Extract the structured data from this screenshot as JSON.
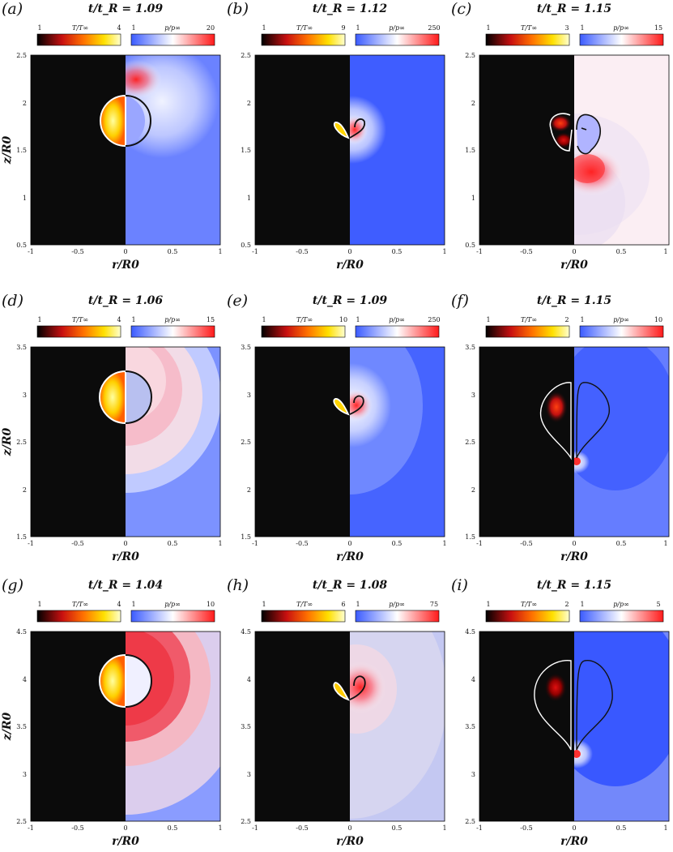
{
  "figure": {
    "panels": [
      {
        "label": "(a)",
        "title": "t/t_R = 1.09",
        "cbT": {
          "label": "T/T∞",
          "min": "1",
          "max": "4"
        },
        "cbP": {
          "label": "p/p∞",
          "min": "1",
          "max": "20"
        },
        "zlim": [
          0.5,
          2.5
        ],
        "zticks": [
          "0.5",
          "1",
          "1.5",
          "2",
          "2.5"
        ]
      },
      {
        "label": "(b)",
        "title": "t/t_R = 1.12",
        "cbT": {
          "label": "T/T∞",
          "min": "1",
          "max": "9"
        },
        "cbP": {
          "label": "p/p∞",
          "min": "1",
          "max": "250"
        },
        "zlim": [
          0.5,
          2.5
        ],
        "zticks": [
          "0.5",
          "1",
          "1.5",
          "2",
          "2.5"
        ]
      },
      {
        "label": "(c)",
        "title": "t/t_R = 1.15",
        "cbT": {
          "label": "T/T∞",
          "min": "1",
          "max": "3"
        },
        "cbP": {
          "label": "p/p∞",
          "min": "1",
          "max": "15"
        },
        "zlim": [
          0.5,
          2.5
        ],
        "zticks": [
          "0.5",
          "1",
          "1.5",
          "2",
          "2.5"
        ]
      },
      {
        "label": "(d)",
        "title": "t/t_R = 1.06",
        "cbT": {
          "label": "T/T∞",
          "min": "1",
          "max": "4"
        },
        "cbP": {
          "label": "p/p∞",
          "min": "1",
          "max": "15"
        },
        "zlim": [
          1.5,
          3.5
        ],
        "zticks": [
          "1.5",
          "2",
          "2.5",
          "3",
          "3.5"
        ]
      },
      {
        "label": "(e)",
        "title": "t/t_R = 1.09",
        "cbT": {
          "label": "T/T∞",
          "min": "1",
          "max": "10"
        },
        "cbP": {
          "label": "p/p∞",
          "min": "1",
          "max": "250"
        },
        "zlim": [
          1.5,
          3.5
        ],
        "zticks": [
          "1.5",
          "2",
          "2.5",
          "3",
          "3.5"
        ]
      },
      {
        "label": "(f)",
        "title": "t/t_R = 1.15",
        "cbT": {
          "label": "T/T∞",
          "min": "1",
          "max": "2"
        },
        "cbP": {
          "label": "p/p∞",
          "min": "1",
          "max": "10"
        },
        "zlim": [
          1.5,
          3.5
        ],
        "zticks": [
          "1.5",
          "2",
          "2.5",
          "3",
          "3.5"
        ]
      },
      {
        "label": "(g)",
        "title": "t/t_R = 1.04",
        "cbT": {
          "label": "T/T∞",
          "min": "1",
          "max": "4"
        },
        "cbP": {
          "label": "p/p∞",
          "min": "1",
          "max": "10"
        },
        "zlim": [
          2.5,
          4.5
        ],
        "zticks": [
          "2.5",
          "3",
          "3.5",
          "4",
          "4.5"
        ]
      },
      {
        "label": "(h)",
        "title": "t/t_R = 1.08",
        "cbT": {
          "label": "T/T∞",
          "min": "1",
          "max": "6"
        },
        "cbP": {
          "label": "p/p∞",
          "min": "1",
          "max": "75"
        },
        "zlim": [
          2.5,
          4.5
        ],
        "zticks": [
          "2.5",
          "3",
          "3.5",
          "4",
          "4.5"
        ]
      },
      {
        "label": "(i)",
        "title": "t/t_R = 1.15",
        "cbT": {
          "label": "T/T∞",
          "min": "1",
          "max": "2"
        },
        "cbP": {
          "label": "p/p∞",
          "min": "1",
          "max": "5"
        },
        "zlim": [
          2.5,
          4.5
        ],
        "zticks": [
          "2.5",
          "3",
          "3.5",
          "4",
          "4.5"
        ]
      }
    ],
    "xticks": [
      "-1",
      "-0.5",
      "0",
      "0.5",
      "1"
    ],
    "xlabel": "r/R0",
    "ylabel": "z/R0",
    "colors": {
      "temperature_map": [
        "#000000",
        "#d01010",
        "#ff7a00",
        "#ffe000",
        "#ffffcc"
      ],
      "pressure_map": [
        "#3d5bff",
        "#ffffff",
        "#ff1a1a"
      ]
    }
  }
}
